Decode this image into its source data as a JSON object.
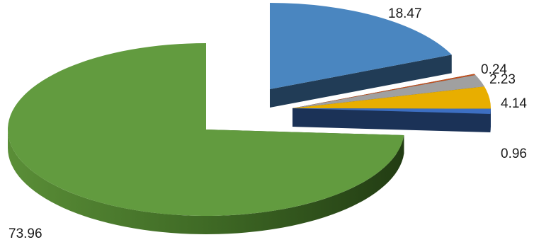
{
  "chart_data": {
    "type": "pie",
    "style": "3d-exploded",
    "legend": "none",
    "slices": [
      {
        "label": "18.47",
        "value": 18.47,
        "color": "#4A86C0"
      },
      {
        "label": "0.24",
        "value": 0.24,
        "color": "#C0501E"
      },
      {
        "label": "2.23",
        "value": 2.23,
        "color": "#A0A0A0"
      },
      {
        "label": "4.14",
        "value": 4.14,
        "color": "#E8AE00"
      },
      {
        "label": "0.96",
        "value": 0.96,
        "color": "#3D6FC2"
      },
      {
        "label": "73.96",
        "value": 73.96,
        "color": "#629B3F"
      }
    ]
  }
}
